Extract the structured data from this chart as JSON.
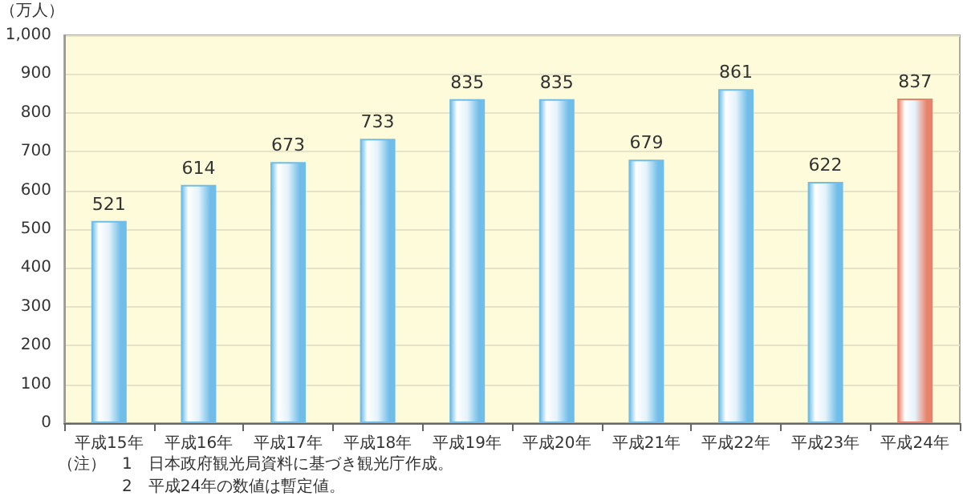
{
  "chart_data": {
    "type": "bar",
    "ylabel": "（万人）",
    "categories": [
      "平成15年",
      "平成16年",
      "平成17年",
      "平成18年",
      "平成19年",
      "平成20年",
      "平成21年",
      "平成22年",
      "平成23年",
      "平成24年"
    ],
    "values": [
      521,
      614,
      673,
      733,
      835,
      835,
      679,
      861,
      622,
      837
    ],
    "colors": [
      "#6fbde8",
      "#6fbde8",
      "#6fbde8",
      "#6fbde8",
      "#6fbde8",
      "#6fbde8",
      "#6fbde8",
      "#6fbde8",
      "#6fbde8",
      "#e8826a"
    ],
    "data_labels": true,
    "ylim": [
      0,
      1000
    ],
    "yticks": [
      0,
      100,
      200,
      300,
      400,
      500,
      600,
      700,
      800,
      900,
      {
        "value": 1000,
        "label": "1,000"
      }
    ],
    "grid": "y",
    "annotations": [
      "（注）　1　日本政府観光局資料に基づき観光庁作成。",
      "　　　　2　平成24年の数値は暫定値。"
    ]
  }
}
